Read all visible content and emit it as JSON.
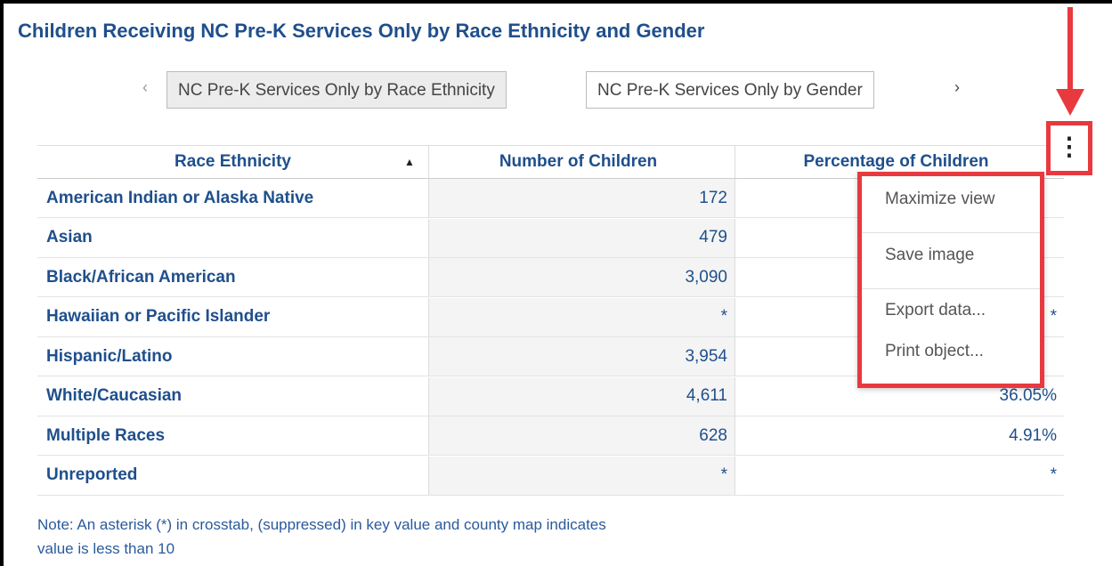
{
  "header": {
    "title": "Children Receiving NC Pre-K Services Only by Race Ethnicity and Gender"
  },
  "tabs": [
    "NC Pre-K Services Only by Race Ethnicity",
    "NC Pre-K Services Only by Gender"
  ],
  "table": {
    "columns": [
      "Race Ethnicity",
      "Number of Children",
      "Percentage of Children"
    ],
    "rows": [
      [
        "American Indian or Alaska Native",
        "172"
      ],
      [
        "Asian",
        "479"
      ],
      [
        "Black/African American",
        "3,090"
      ],
      [
        "Hawaiian or Pacific Islander",
        "*",
        "*"
      ],
      [
        "Hispanic/Latino",
        "3,954"
      ],
      [
        "White/Caucasian",
        "4,611",
        "36.05%"
      ],
      [
        "Multiple Races",
        "628",
        "4.91%"
      ],
      [
        "Unreported",
        "*",
        "*"
      ]
    ]
  },
  "menu": [
    "Maximize view",
    "Save image",
    "Export data...",
    "Print object..."
  ],
  "note": [
    "Note: An asterisk (*) in crosstab, (suppressed) in key value and county map indicates",
    "value is less than 10"
  ]
}
